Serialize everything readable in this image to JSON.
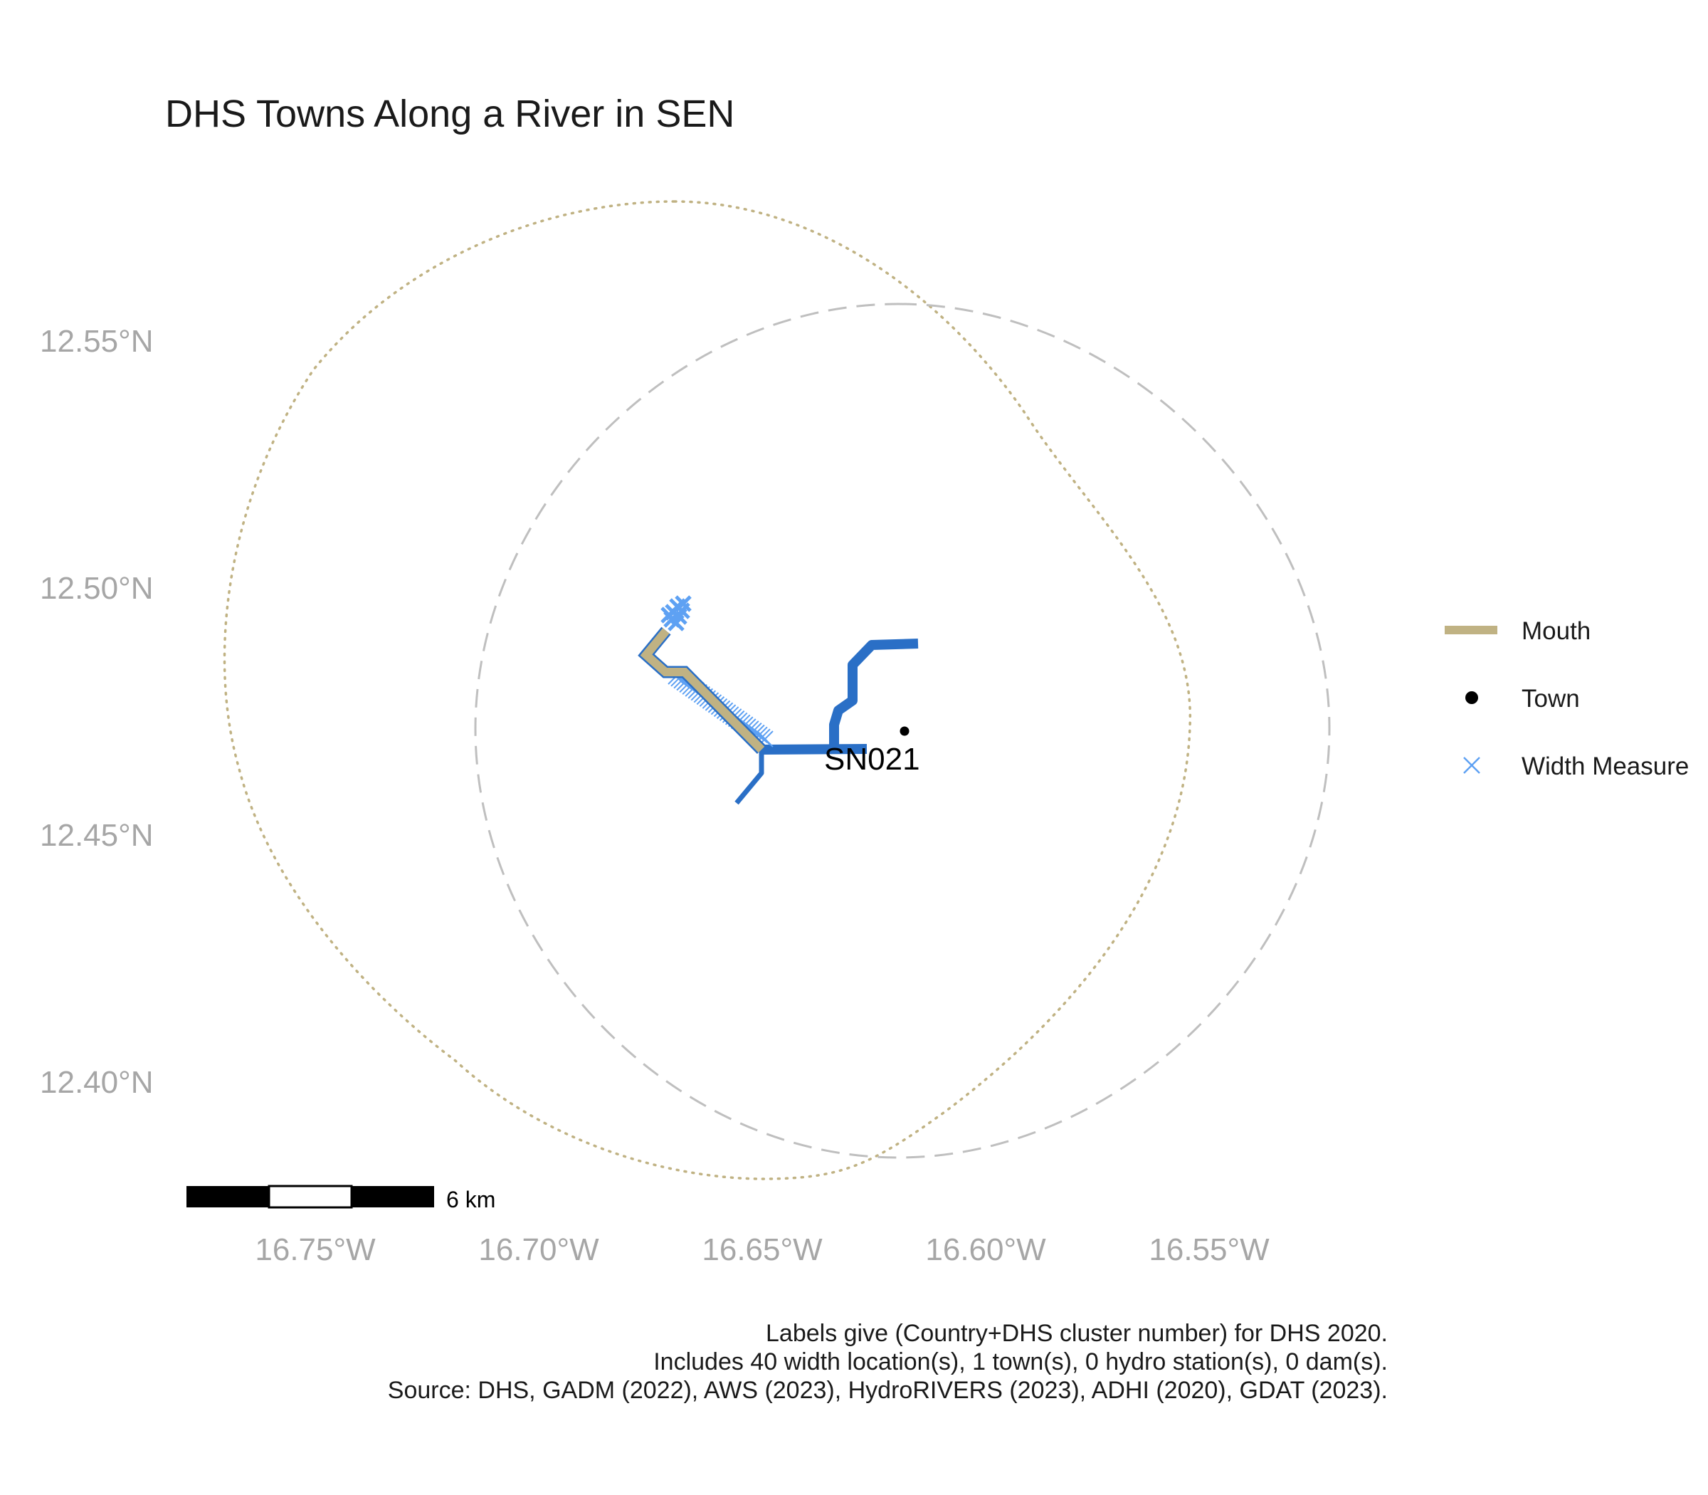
{
  "title": "DHS Towns Along a River in SEN",
  "axes": {
    "y_ticks": [
      "12.55°N",
      "12.50°N",
      "12.45°N",
      "12.40°N"
    ],
    "x_ticks": [
      "16.75°W",
      "16.70°W",
      "16.65°W",
      "16.60°W",
      "16.55°W"
    ]
  },
  "legend": {
    "placement": "right",
    "items": [
      {
        "label": "Mouth",
        "symbol": "thick-line",
        "color": "#c0b283"
      },
      {
        "label": "Town",
        "symbol": "dot",
        "color": "#000000"
      },
      {
        "label": "Width Measure",
        "symbol": "cross",
        "color": "#5ea1f3"
      }
    ]
  },
  "town": {
    "label": "SN021",
    "lon": -16.619,
    "lat": 12.471
  },
  "scale_bar": {
    "label": "6 km"
  },
  "colors": {
    "river": "#2a6fc6",
    "mouth": "#c0b283",
    "width_measure": "#5ea1f3",
    "dotted_circle": "#c0b283",
    "dashed_circle": "#bfbfbf",
    "axis_text": "#a6a6a6"
  },
  "caption": [
    "Labels give (Country+DHS cluster number) for DHS 2020.",
    "Includes 40 width location(s), 1 town(s), 0 hydro station(s), 0 dam(s).",
    "Source: DHS, GADM (2022), AWS (2023), HydroRIVERS (2023), ADHI (2020), GDAT (2023)."
  ]
}
